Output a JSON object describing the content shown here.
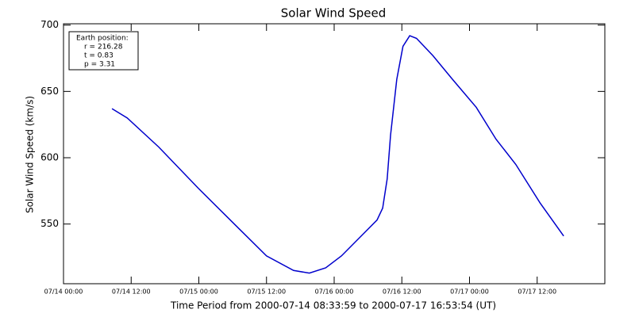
{
  "chart_data": {
    "type": "line",
    "title": "Solar Wind Speed",
    "ylabel": "Solar Wind Speed (km/s)",
    "xlabel": "Time Period from 2000-07-14 08:33:59 to 2000-07-17 16:53:54 (UT)",
    "annotation": [
      "Earth position:",
      "r = 216.28",
      "t = 0.83",
      "p = 3.31"
    ],
    "xlim": [
      0,
      96
    ],
    "xticks": [
      {
        "value": 0,
        "label": "07/14 00:00"
      },
      {
        "value": 12,
        "label": "07/14 12:00"
      },
      {
        "value": 24,
        "label": "07/15 00:00"
      },
      {
        "value": 36,
        "label": "07/15 12:00"
      },
      {
        "value": 48,
        "label": "07/16 00:00"
      },
      {
        "value": 60,
        "label": "07/16 12:00"
      },
      {
        "value": 72,
        "label": "07/17 00:00"
      },
      {
        "value": 84,
        "label": "07/17 12:00"
      }
    ],
    "ylim": [
      505,
      701
    ],
    "yticks": [
      550,
      600,
      650,
      700
    ],
    "x": [
      8.6,
      11.3,
      16.9,
      23.9,
      31.0,
      36.0,
      40.8,
      43.6,
      46.5,
      49.3,
      53.5,
      55.6,
      56.6,
      57.4,
      58.0,
      59.1,
      60.2,
      61.4,
      62.6,
      65.5,
      69.0,
      73.2,
      76.7,
      80.2,
      84.5,
      88.7
    ],
    "series": [
      {
        "name": "Solar Wind Speed",
        "color": "#0000cc",
        "values": [
          637,
          630,
          608,
          577,
          547,
          526,
          515,
          513,
          517,
          526,
          544,
          553,
          562,
          584,
          617,
          659,
          684,
          692,
          690,
          677,
          659,
          638,
          614,
          595,
          566,
          541
        ]
      }
    ]
  }
}
